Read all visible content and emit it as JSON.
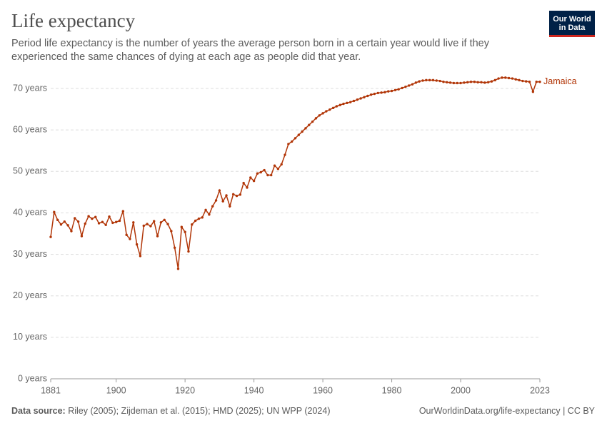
{
  "chart_data": {
    "type": "line",
    "title": "Life expectancy",
    "subtitle": "Period life expectancy is the number of years the average person born in a certain year would live if they experienced the same chances of dying at each age as people did that year.",
    "logo": [
      "Our World",
      "in Data"
    ],
    "source_label": "Data source:",
    "source": "Riley (2005); Zijdeman et al. (2015); HMD (2025); UN WPP (2024)",
    "license": "OurWorldinData.org/life-expectancy | CC BY",
    "x": [
      1881,
      1882,
      1883,
      1884,
      1885,
      1886,
      1887,
      1888,
      1889,
      1890,
      1891,
      1892,
      1893,
      1894,
      1895,
      1896,
      1897,
      1898,
      1899,
      1900,
      1901,
      1902,
      1903,
      1904,
      1905,
      1906,
      1907,
      1908,
      1909,
      1910,
      1911,
      1912,
      1913,
      1914,
      1915,
      1916,
      1917,
      1918,
      1919,
      1920,
      1921,
      1922,
      1923,
      1924,
      1925,
      1926,
      1927,
      1928,
      1929,
      1930,
      1931,
      1932,
      1933,
      1934,
      1935,
      1936,
      1937,
      1938,
      1939,
      1940,
      1941,
      1942,
      1943,
      1944,
      1945,
      1946,
      1947,
      1948,
      1949,
      1950,
      1951,
      1952,
      1953,
      1954,
      1955,
      1956,
      1957,
      1958,
      1959,
      1960,
      1961,
      1962,
      1963,
      1964,
      1965,
      1966,
      1967,
      1968,
      1969,
      1970,
      1971,
      1972,
      1973,
      1974,
      1975,
      1976,
      1977,
      1978,
      1979,
      1980,
      1981,
      1982,
      1983,
      1984,
      1985,
      1986,
      1987,
      1988,
      1989,
      1990,
      1991,
      1992,
      1993,
      1994,
      1995,
      1996,
      1997,
      1998,
      1999,
      2000,
      2001,
      2002,
      2003,
      2004,
      2005,
      2006,
      2007,
      2008,
      2009,
      2010,
      2011,
      2012,
      2013,
      2014,
      2015,
      2016,
      2017,
      2018,
      2019,
      2020,
      2021,
      2022,
      2023
    ],
    "series": [
      {
        "name": "Jamaica",
        "color": "#b13507",
        "values": [
          34.2,
          40.2,
          38.3,
          37.2,
          37.9,
          37.0,
          35.6,
          38.7,
          37.9,
          34.4,
          37.4,
          39.2,
          38.6,
          39.0,
          37.5,
          37.8,
          37.1,
          39.1,
          37.6,
          37.8,
          38.1,
          40.4,
          34.7,
          33.7,
          37.7,
          32.4,
          29.6,
          36.9,
          37.3,
          36.8,
          38.0,
          34.4,
          37.7,
          38.3,
          37.3,
          35.6,
          31.6,
          26.5,
          36.6,
          35.4,
          30.7,
          37.2,
          38.1,
          38.6,
          38.9,
          40.7,
          39.6,
          41.6,
          43.0,
          45.4,
          42.8,
          44.2,
          41.6,
          44.5,
          44.1,
          44.4,
          47.2,
          46.1,
          48.5,
          47.7,
          49.5,
          49.8,
          50.3,
          49.1,
          49.1,
          51.4,
          50.6,
          51.7,
          54.0,
          56.6,
          57.2,
          58.0,
          58.8,
          59.6,
          60.4,
          61.2,
          62.0,
          62.8,
          63.5,
          64.0,
          64.5,
          64.9,
          65.3,
          65.7,
          66.0,
          66.3,
          66.5,
          66.7,
          67.0,
          67.3,
          67.6,
          67.9,
          68.2,
          68.5,
          68.7,
          68.9,
          69.0,
          69.1,
          69.3,
          69.4,
          69.6,
          69.8,
          70.1,
          70.4,
          70.7,
          71.0,
          71.4,
          71.7,
          71.9,
          72.0,
          72.0,
          72.0,
          71.9,
          71.8,
          71.6,
          71.5,
          71.4,
          71.3,
          71.3,
          71.3,
          71.4,
          71.5,
          71.6,
          71.6,
          71.5,
          71.5,
          71.4,
          71.5,
          71.7,
          72.0,
          72.4,
          72.6,
          72.6,
          72.5,
          72.4,
          72.2,
          72.0,
          71.8,
          71.7,
          71.6,
          69.2,
          71.6,
          71.6
        ]
      }
    ],
    "xlim": [
      1881,
      2023
    ],
    "xticks": [
      1881,
      1900,
      1920,
      1940,
      1960,
      1980,
      2000,
      2023
    ],
    "ylim": [
      0,
      70
    ],
    "yticks": [
      {
        "value": 0,
        "label": "0 years"
      },
      {
        "value": 10,
        "label": "10 years"
      },
      {
        "value": 20,
        "label": "20 years"
      },
      {
        "value": 30,
        "label": "30 years"
      },
      {
        "value": 40,
        "label": "40 years"
      },
      {
        "value": 50,
        "label": "50 years"
      },
      {
        "value": 60,
        "label": "60 years"
      },
      {
        "value": 70,
        "label": "70 years"
      }
    ],
    "grid": true
  }
}
